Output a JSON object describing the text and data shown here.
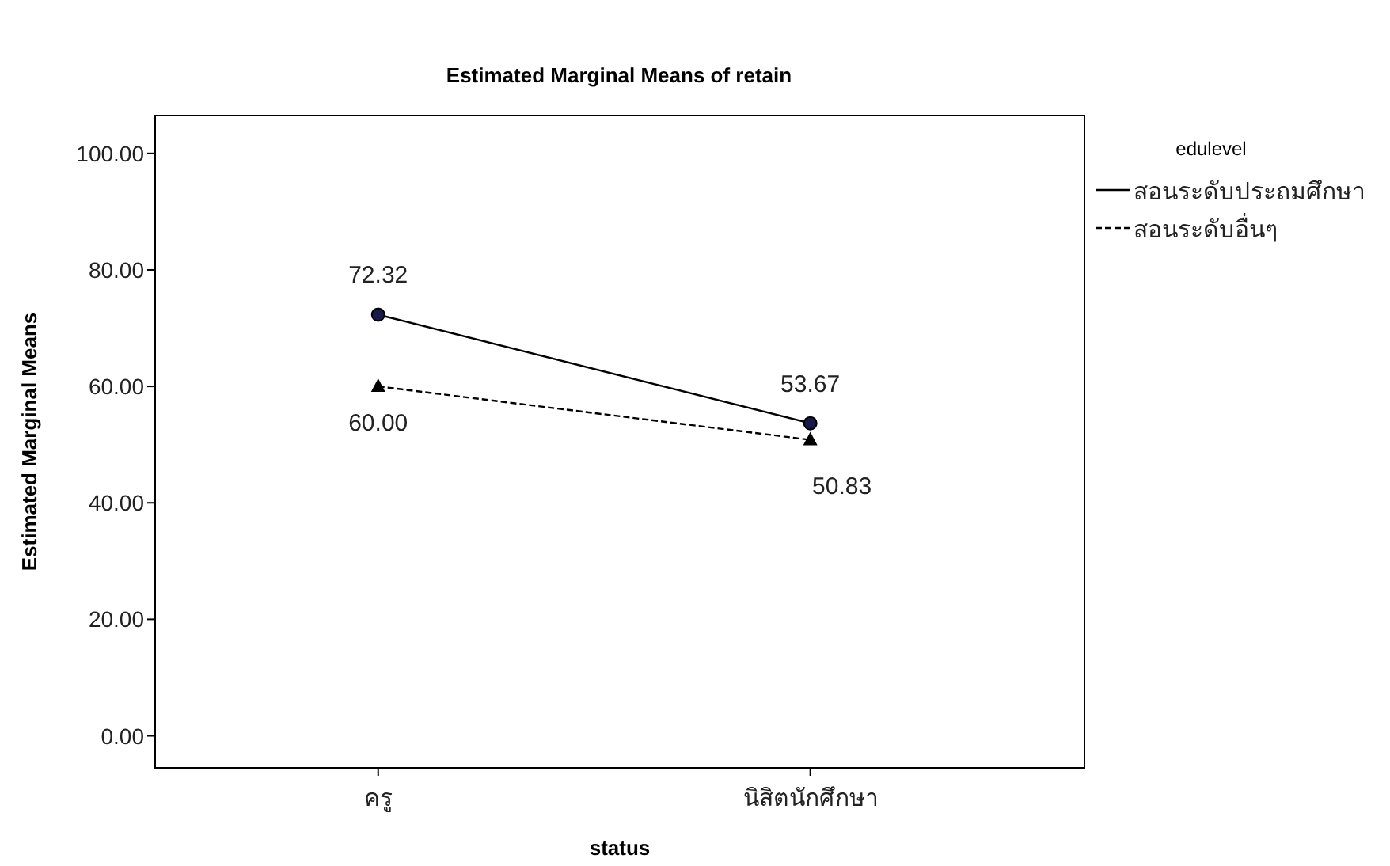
{
  "chart_data": {
    "type": "line",
    "title": "Estimated Marginal Means of retain",
    "xlabel": "status",
    "ylabel": "Estimated Marginal Means",
    "legend_title": "edulevel",
    "legend": "top right",
    "categories": [
      "ครู",
      "นิสิตนักศึกษา"
    ],
    "ylim": [
      -5.5,
      106.5
    ],
    "yticks": [
      {
        "value": 0,
        "label": "0.00"
      },
      {
        "value": 20,
        "label": "20.00"
      },
      {
        "value": 40,
        "label": "40.00"
      },
      {
        "value": 60,
        "label": "60.00"
      },
      {
        "value": 80,
        "label": "80.00"
      },
      {
        "value": 100,
        "label": "100.00"
      }
    ],
    "series": [
      {
        "name": "สอนระดับประถมศึกษา",
        "color": "#000000",
        "marker": "circle",
        "line_style": "solid",
        "values": [
          72.32,
          53.67
        ],
        "value_labels": [
          "72.32",
          "53.67"
        ]
      },
      {
        "name": "สอนระดับอื่นๆ",
        "color": "#000000",
        "marker": "triangle",
        "line_style": "dashed",
        "values": [
          60.0,
          50.83
        ],
        "value_labels": [
          "60.00",
          "50.83"
        ]
      }
    ]
  }
}
